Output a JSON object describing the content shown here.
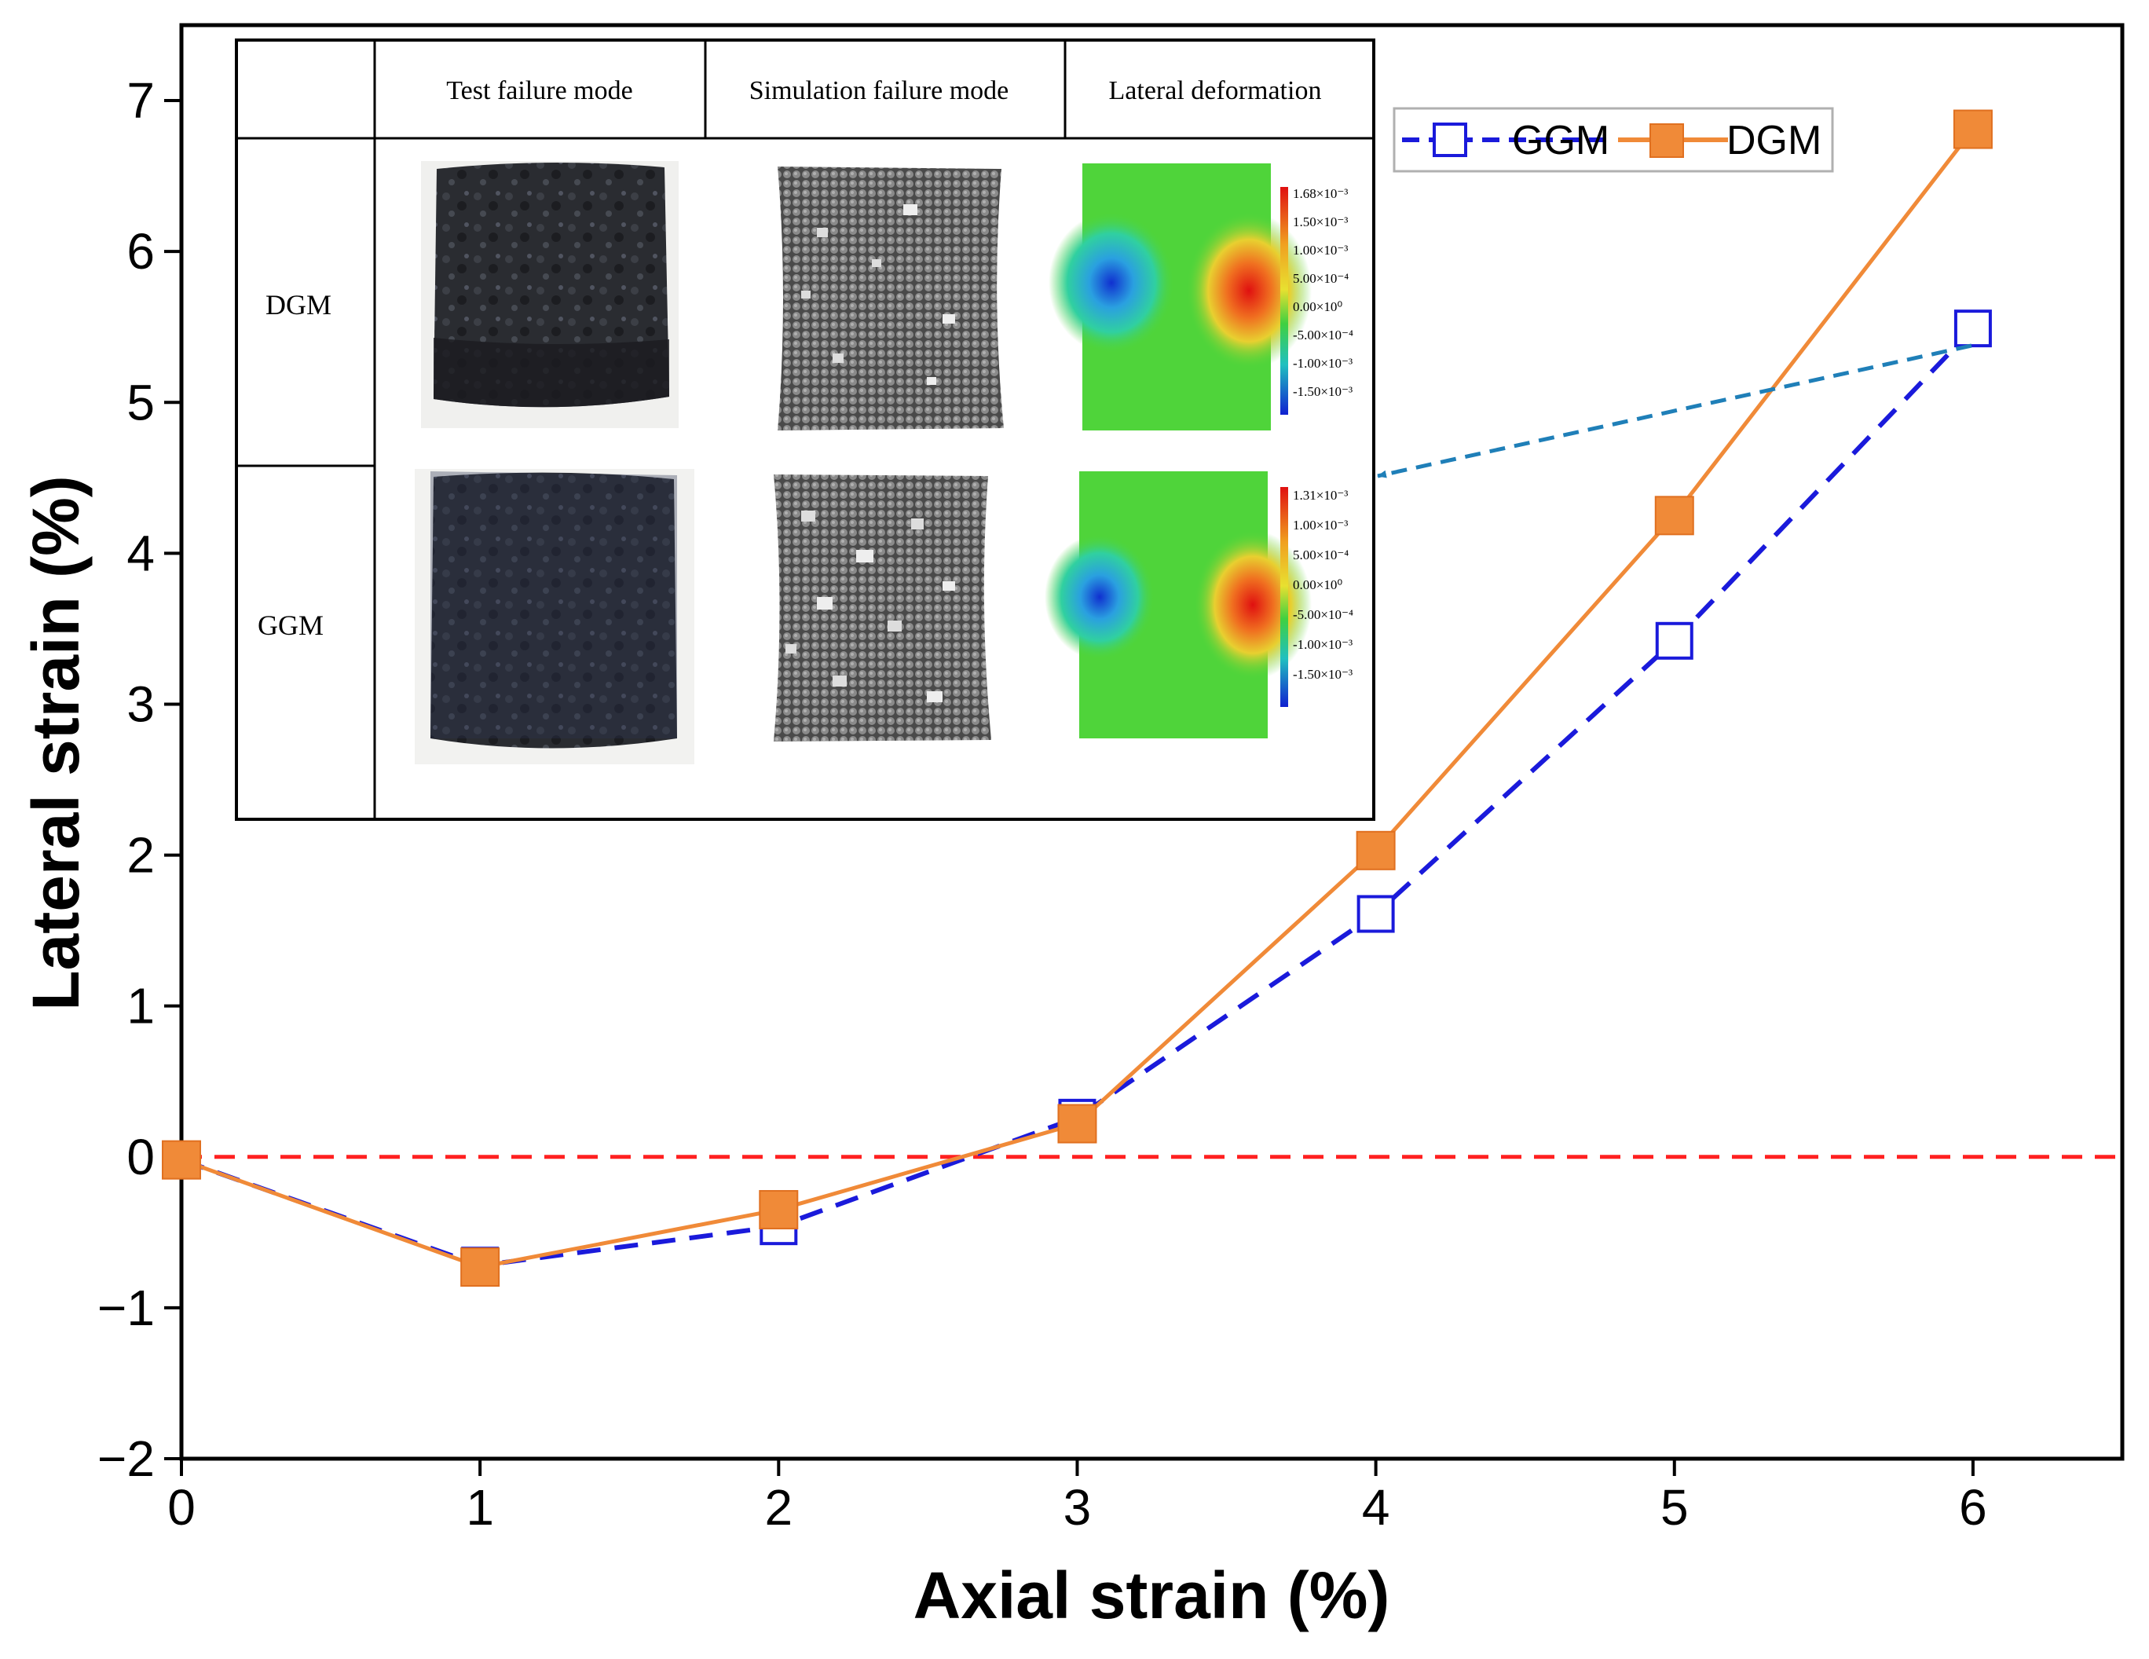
{
  "chart_data": {
    "type": "line",
    "title": "",
    "xlabel": "Axial strain (%)",
    "ylabel": "Lateral strain (%)",
    "xlim": [
      0,
      6.5
    ],
    "ylim": [
      -2,
      7.5
    ],
    "xticks": [
      0,
      1,
      2,
      3,
      4,
      5,
      6
    ],
    "yticks": [
      -2,
      -1,
      0,
      1,
      2,
      3,
      4,
      5,
      6,
      7
    ],
    "xtick_labels": [
      "0",
      "1",
      "2",
      "3",
      "4",
      "5",
      "6"
    ],
    "ytick_labels": [
      "−2",
      "−1",
      "0",
      "1",
      "2",
      "3",
      "4",
      "5",
      "6",
      "7"
    ],
    "x": [
      0,
      1,
      2,
      3,
      4,
      5,
      6
    ],
    "series": [
      {
        "name": "GGM",
        "values": [
          -0.02,
          -0.72,
          -0.46,
          0.26,
          1.61,
          3.42,
          5.49
        ],
        "color": "#1a1adb",
        "line_style": "dashed",
        "marker": "open-square"
      },
      {
        "name": "DGM",
        "values": [
          -0.02,
          -0.73,
          -0.35,
          0.22,
          2.03,
          4.25,
          6.81
        ],
        "color": "#f08a38",
        "line_style": "solid",
        "marker": "filled-square"
      }
    ],
    "reference_line": {
      "y": 0,
      "color": "#ff2020",
      "style": "dashed"
    },
    "legend": {
      "position": "top-right",
      "entries": [
        "GGM",
        "DGM"
      ]
    },
    "grid": false
  },
  "inset": {
    "column_headers": [
      "Test failure mode",
      "Simulation failure mode",
      "Lateral deformation"
    ],
    "row_labels": [
      "DGM",
      "GGM"
    ],
    "colorbars": [
      {
        "row": "DGM",
        "labels": [
          "1.68×10⁻³",
          "1.50×10⁻³",
          "1.00×10⁻³",
          "5.00×10⁻⁴",
          "0.00×10⁰",
          "-5.00×10⁻⁴",
          "-1.00×10⁻³",
          "-1.50×10⁻³"
        ]
      },
      {
        "row": "GGM",
        "labels": [
          "1.31×10⁻³",
          "1.00×10⁻³",
          "5.00×10⁻⁴",
          "0.00×10⁰",
          "-5.00×10⁻⁴",
          "-1.00×10⁻³",
          "-1.50×10⁻³"
        ]
      }
    ]
  },
  "colors": {
    "ggm": "#1a1adb",
    "dgm": "#f08a38",
    "zero_line": "#ff2020",
    "arrow": "#1f7fb8"
  }
}
